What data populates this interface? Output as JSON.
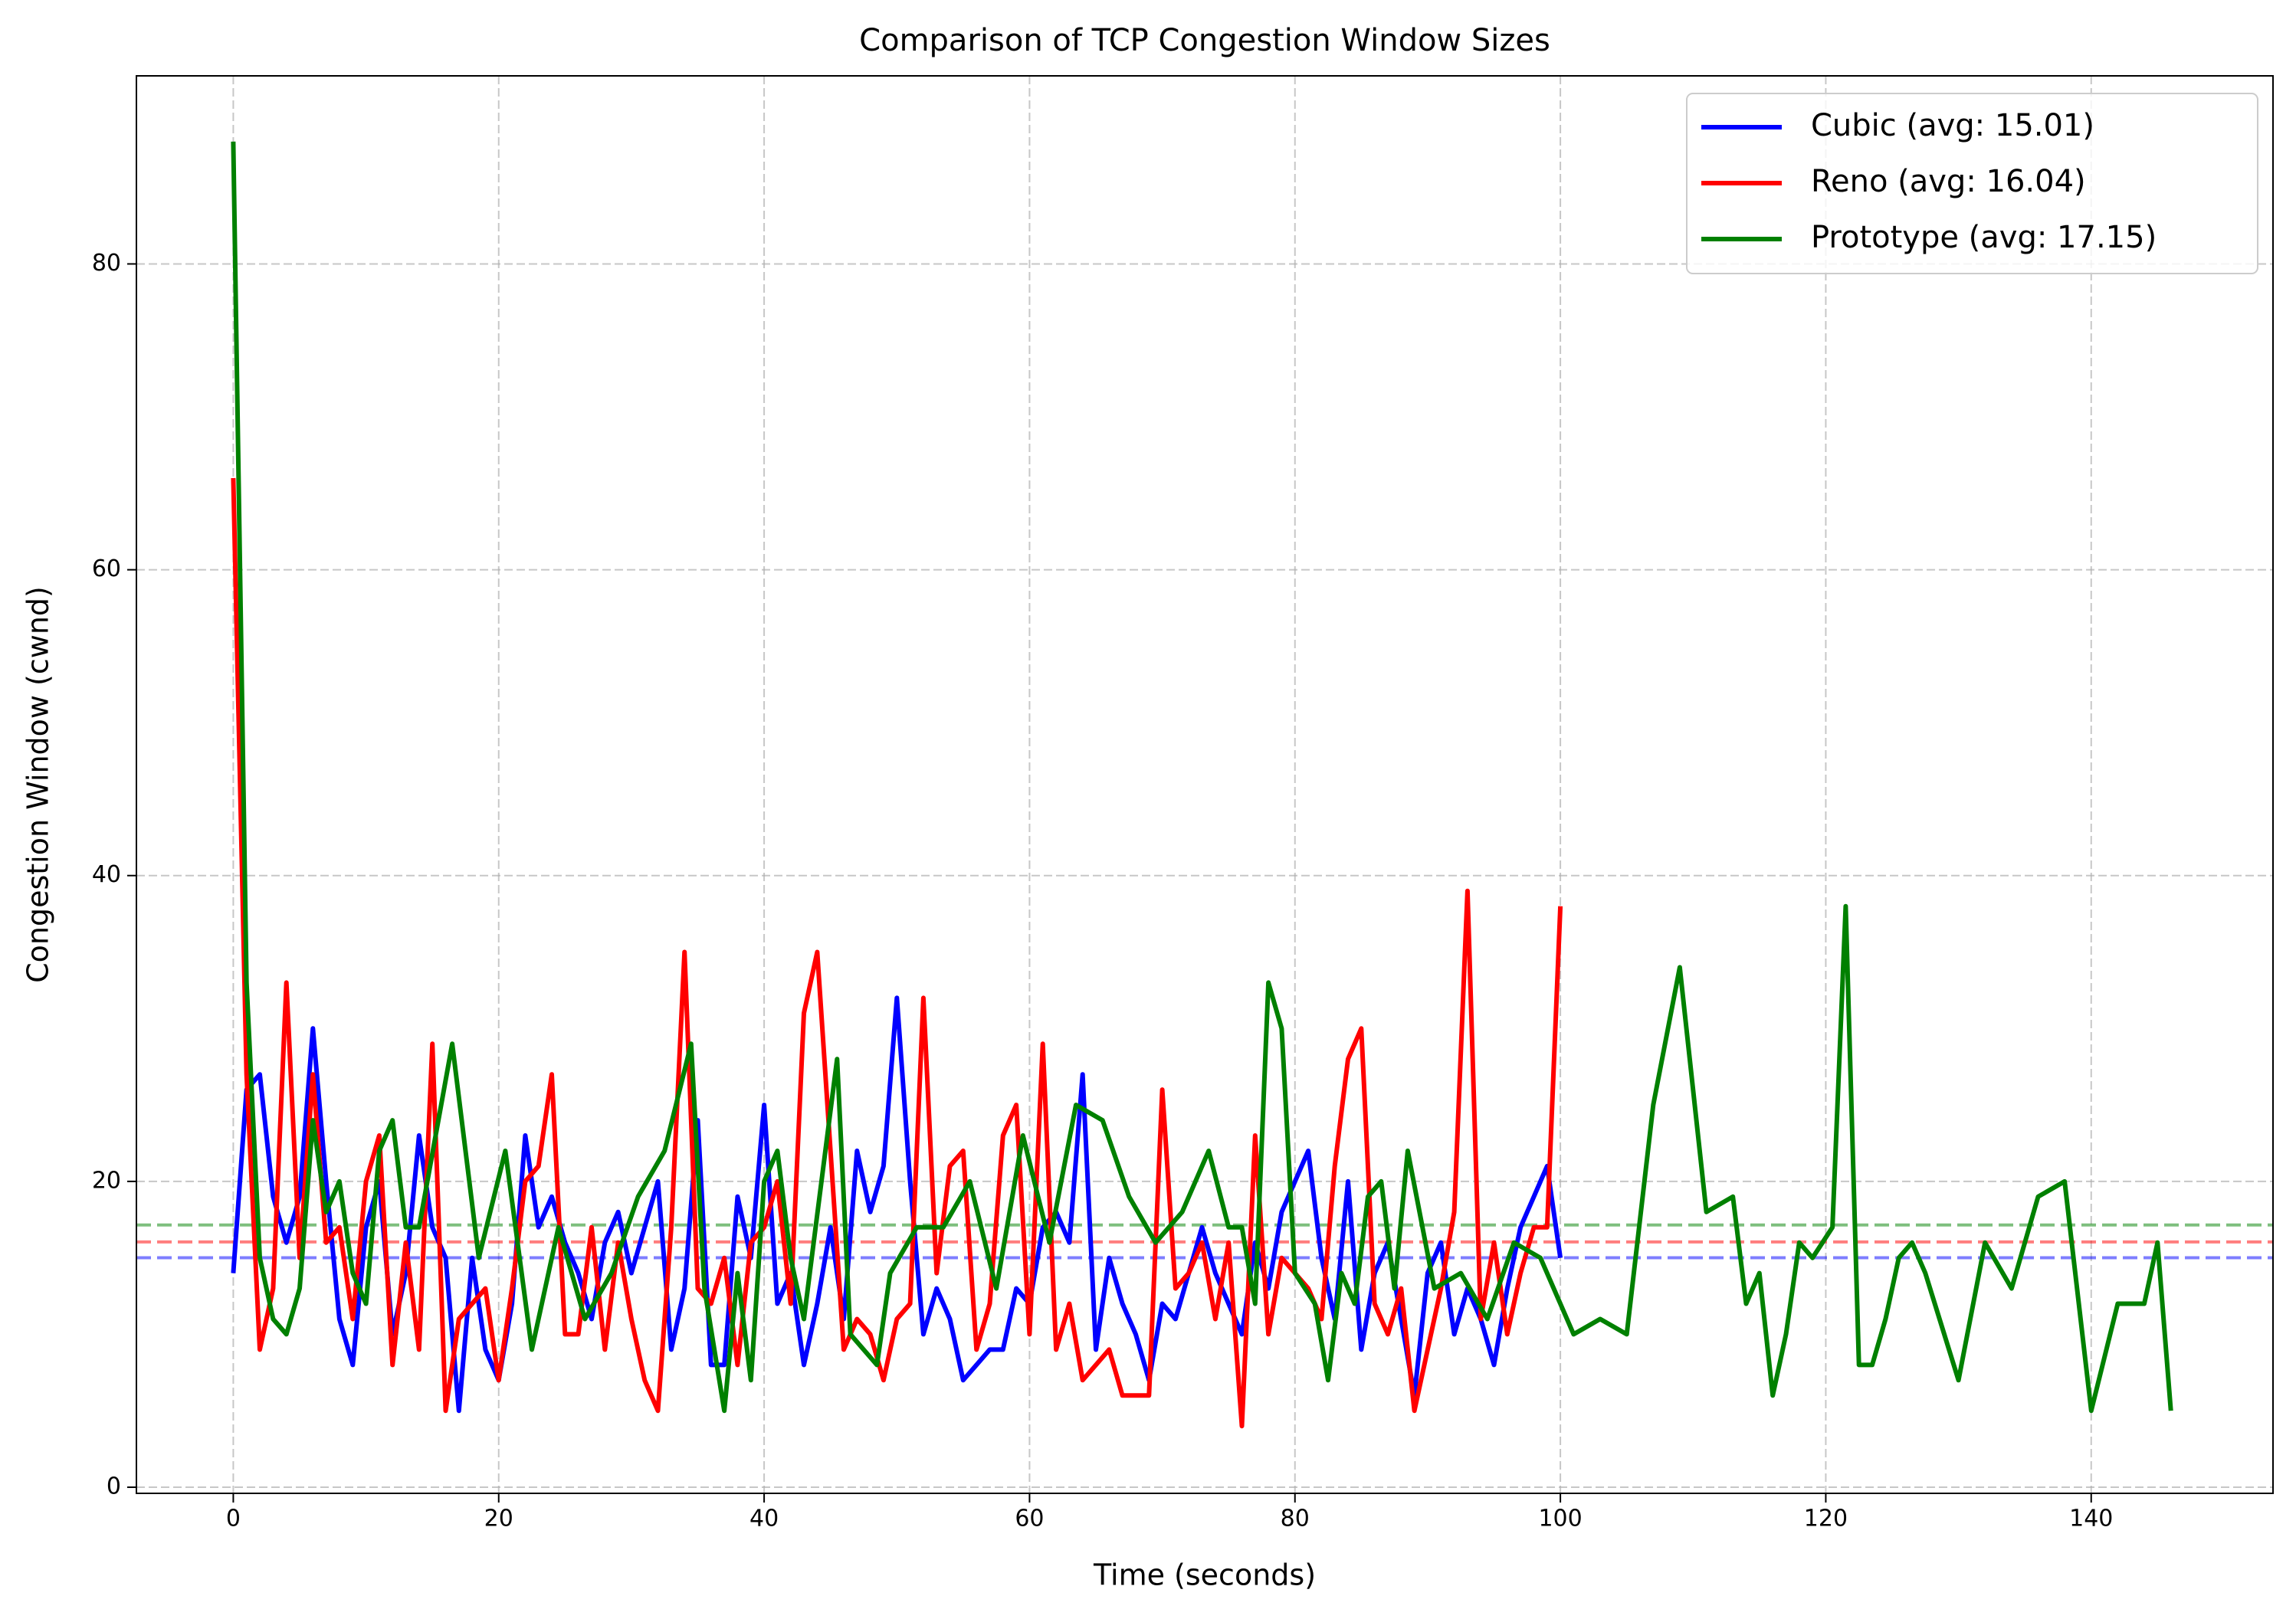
{
  "chart_data": {
    "type": "line",
    "title": "Comparison of TCP Congestion Window Sizes",
    "xlabel": "Time (seconds)",
    "ylabel": "Congestion Window (cwnd)",
    "xlim": [
      -7.3,
      153.7
    ],
    "ylim": [
      -0.4,
      92.3
    ],
    "xticks": [
      0,
      20,
      40,
      60,
      80,
      100,
      120,
      140
    ],
    "yticks": [
      0,
      20,
      40,
      60,
      80
    ],
    "grid": true,
    "legend": "upper right",
    "series": [
      {
        "name": "Cubic (avg: 15.01)",
        "color": "#0000ff",
        "avg": 15.01,
        "x": [
          0,
          1,
          2,
          3,
          4,
          5,
          6,
          7,
          8,
          9,
          10,
          11,
          12,
          13,
          14,
          15,
          16,
          17,
          18,
          19,
          20,
          21,
          22,
          23,
          24,
          25,
          26,
          27,
          28,
          29,
          30,
          31,
          32,
          33,
          34,
          35,
          36,
          37,
          38,
          39,
          40,
          41,
          42,
          43,
          44,
          45,
          46,
          47,
          48,
          49,
          50,
          51,
          52,
          53,
          54,
          55,
          56,
          57,
          58,
          59,
          60,
          61,
          62,
          63,
          64,
          65,
          66,
          67,
          68,
          69,
          70,
          71,
          72,
          73,
          74,
          75,
          76,
          77,
          78,
          79,
          80,
          81,
          82,
          83,
          84,
          85,
          86,
          87,
          88,
          89,
          90,
          91,
          92,
          93,
          94,
          95,
          96,
          97,
          98,
          99,
          100
        ],
        "values": [
          14,
          26,
          27,
          19,
          16,
          19,
          30,
          20,
          11,
          8,
          17,
          20,
          10,
          14,
          23,
          17,
          15,
          5,
          15,
          9,
          7,
          12,
          23,
          17,
          19,
          16,
          14,
          11,
          16,
          18,
          14,
          17,
          20,
          9,
          13,
          24,
          8,
          8,
          19,
          15,
          25,
          12,
          14,
          8,
          12,
          17,
          11,
          22,
          18,
          21,
          32,
          20,
          10,
          13,
          11,
          7,
          8,
          9,
          9,
          13,
          12,
          17,
          18,
          16,
          27,
          9,
          15,
          12,
          10,
          7,
          12,
          11,
          14,
          17,
          14,
          12,
          10,
          16,
          13,
          18,
          20,
          22,
          15,
          11,
          20,
          9,
          14,
          16,
          11,
          6,
          14,
          16,
          10,
          13,
          11,
          8,
          13,
          17,
          19,
          21,
          15
        ]
      },
      {
        "name": "Reno (avg: 16.04)",
        "color": "#ff0000",
        "avg": 16.04,
        "x": [
          0,
          1,
          2,
          3,
          4,
          5,
          6,
          7,
          8,
          9,
          10,
          11,
          12,
          13,
          14,
          15,
          16,
          17,
          18,
          19,
          20,
          21,
          22,
          23,
          24,
          25,
          26,
          27,
          28,
          29,
          30,
          31,
          32,
          33,
          34,
          35,
          36,
          37,
          38,
          39,
          40,
          41,
          42,
          43,
          44,
          45,
          46,
          47,
          48,
          49,
          50,
          51,
          52,
          53,
          54,
          55,
          56,
          57,
          58,
          59,
          60,
          61,
          62,
          63,
          64,
          65,
          66,
          67,
          68,
          69,
          70,
          71,
          72,
          73,
          74,
          75,
          76,
          77,
          78,
          79,
          80,
          81,
          82,
          83,
          84,
          85,
          86,
          87,
          88,
          89,
          90,
          91,
          92,
          93,
          94,
          95,
          96,
          97,
          98,
          99,
          100
        ],
        "values": [
          66,
          27,
          9,
          13,
          33,
          15,
          27,
          16,
          17,
          11,
          20,
          23,
          8,
          16,
          9,
          29,
          5,
          11,
          12,
          13,
          7,
          13,
          20,
          21,
          27,
          10,
          10,
          17,
          9,
          16,
          11,
          7,
          5,
          17,
          35,
          13,
          12,
          15,
          8,
          16,
          17,
          20,
          12,
          31,
          35,
          22,
          9,
          11,
          10,
          7,
          11,
          12,
          32,
          14,
          21,
          22,
          9,
          12,
          23,
          25,
          10,
          29,
          9,
          12,
          7,
          8,
          9,
          6,
          6,
          6,
          26,
          13,
          14,
          16,
          11,
          16,
          4,
          23,
          10,
          15,
          14,
          13,
          11,
          21,
          28,
          30,
          12,
          10,
          13,
          5,
          9,
          13,
          18,
          39,
          11,
          16,
          10,
          14,
          17,
          17,
          38
        ]
      },
      {
        "name": "Prototype (avg: 17.15)",
        "color": "#008000",
        "avg": 17.15,
        "x": [
          0,
          1,
          2,
          3,
          4,
          5,
          6,
          7,
          8,
          9,
          10,
          11,
          12,
          13,
          14,
          16.5,
          18.5,
          20.5,
          22.5,
          24.5,
          26.5,
          28.5,
          30.5,
          32.5,
          34.5,
          35.5,
          37,
          38,
          39,
          40,
          41,
          42,
          43,
          45.5,
          46.5,
          48.5,
          49.5,
          51.5,
          53.5,
          55.5,
          57.5,
          59.5,
          61.5,
          63.5,
          65.5,
          67.5,
          69.5,
          71.5,
          73.5,
          75,
          76,
          77,
          78,
          79,
          80,
          81.5,
          82.5,
          83.5,
          84.5,
          85.5,
          86.5,
          87.5,
          88.5,
          90.5,
          92.5,
          94.5,
          96.5,
          98.5,
          101,
          103,
          105,
          107,
          109,
          111,
          113,
          114,
          115,
          116,
          117,
          118,
          119,
          120.5,
          121.5,
          122.5,
          123.5,
          124.5,
          125.5,
          126.5,
          127.5,
          130,
          132,
          134,
          136,
          138,
          140,
          142,
          144,
          145,
          146
        ],
        "values": [
          88,
          33,
          15,
          11,
          10,
          13,
          24,
          18,
          20,
          14,
          12,
          22,
          24,
          17,
          17,
          29,
          15,
          22,
          9,
          17,
          11,
          14,
          19,
          22,
          29,
          13,
          5,
          14,
          7,
          20,
          22,
          15,
          11,
          28,
          10,
          8,
          14,
          17,
          17,
          20,
          13,
          23,
          16,
          25,
          24,
          19,
          16,
          18,
          22,
          17,
          17,
          12,
          33,
          30,
          14,
          12,
          7,
          14,
          12,
          19,
          20,
          13,
          22,
          13,
          14,
          11,
          16,
          15,
          10,
          11,
          10,
          25,
          34,
          18,
          19,
          12,
          14,
          6,
          10,
          16,
          15,
          17,
          38,
          8,
          8,
          11,
          15,
          16,
          14,
          7,
          16,
          13,
          19,
          20,
          5,
          12,
          12,
          16,
          5
        ]
      }
    ]
  }
}
